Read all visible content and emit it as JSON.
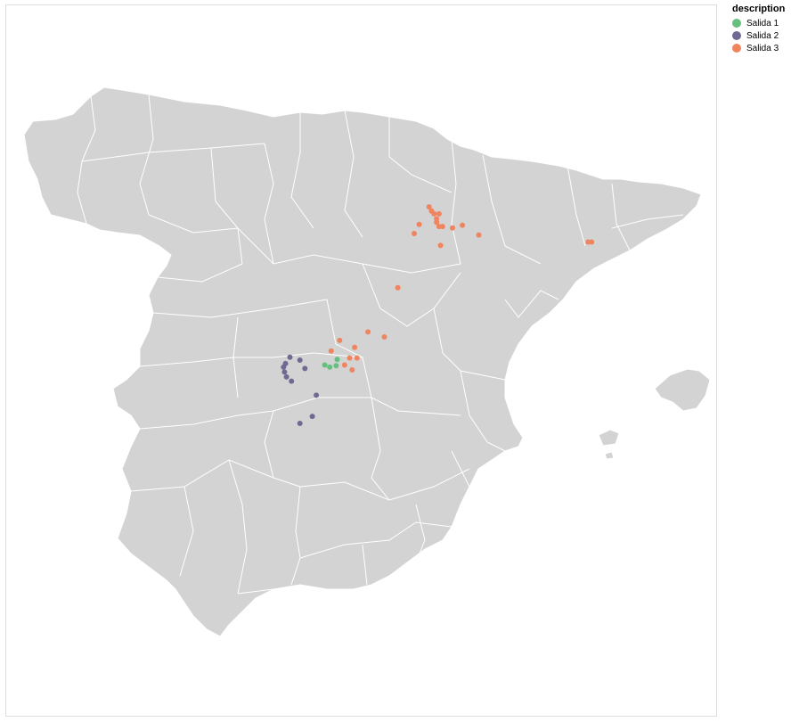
{
  "legend": {
    "title": "description",
    "items": [
      {
        "label": "Salida 1",
        "color": "#66bf7f"
      },
      {
        "label": "Salida 2",
        "color": "#6f6a92"
      },
      {
        "label": "Salida 3",
        "color": "#f0845e"
      }
    ]
  },
  "map": {
    "land_color": "#d3d3d3",
    "border_color": "#ffffff",
    "projection": {
      "lon_min": -9.4,
      "lon_max": 4.4,
      "lat_min": 35.9,
      "lat_max": 43.8
    }
  },
  "chart_data": {
    "type": "scatter",
    "title": "",
    "xlabel": "",
    "ylabel": "",
    "series": [
      {
        "name": "Salida 1",
        "points": [
          {
            "lon": -3.35,
            "lat": 39.85
          },
          {
            "lon": -3.25,
            "lat": 39.82
          },
          {
            "lon": -3.12,
            "lat": 39.84
          },
          {
            "lon": -3.1,
            "lat": 39.93
          }
        ]
      },
      {
        "name": "Salida 2",
        "points": [
          {
            "lon": -4.05,
            "lat": 39.96
          },
          {
            "lon": -4.14,
            "lat": 39.87
          },
          {
            "lon": -4.18,
            "lat": 39.82
          },
          {
            "lon": -4.16,
            "lat": 39.75
          },
          {
            "lon": -4.12,
            "lat": 39.68
          },
          {
            "lon": -4.02,
            "lat": 39.62
          },
          {
            "lon": -3.85,
            "lat": 39.92
          },
          {
            "lon": -3.75,
            "lat": 39.8
          },
          {
            "lon": -3.52,
            "lat": 39.42
          },
          {
            "lon": -3.6,
            "lat": 39.12
          },
          {
            "lon": -3.85,
            "lat": 39.02
          }
        ]
      },
      {
        "name": "Salida 3",
        "points": [
          {
            "lon": -1.25,
            "lat": 42.1
          },
          {
            "lon": -1.2,
            "lat": 42.04
          },
          {
            "lon": -1.15,
            "lat": 42.0
          },
          {
            "lon": -1.05,
            "lat": 42.0
          },
          {
            "lon": -1.1,
            "lat": 41.93
          },
          {
            "lon": -1.1,
            "lat": 41.88
          },
          {
            "lon": -1.05,
            "lat": 41.82
          },
          {
            "lon": -0.98,
            "lat": 41.82
          },
          {
            "lon": -1.45,
            "lat": 41.85
          },
          {
            "lon": -1.55,
            "lat": 41.72
          },
          {
            "lon": -0.78,
            "lat": 41.8
          },
          {
            "lon": -0.58,
            "lat": 41.84
          },
          {
            "lon": -0.25,
            "lat": 41.7
          },
          {
            "lon": -1.02,
            "lat": 41.55
          },
          {
            "lon": 1.95,
            "lat": 41.6
          },
          {
            "lon": 2.02,
            "lat": 41.6
          },
          {
            "lon": -1.88,
            "lat": 40.95
          },
          {
            "lon": -2.48,
            "lat": 40.32
          },
          {
            "lon": -2.15,
            "lat": 40.25
          },
          {
            "lon": -3.05,
            "lat": 40.2
          },
          {
            "lon": -2.75,
            "lat": 40.1
          },
          {
            "lon": -3.22,
            "lat": 40.05
          },
          {
            "lon": -2.85,
            "lat": 39.95
          },
          {
            "lon": -2.7,
            "lat": 39.95
          },
          {
            "lon": -2.95,
            "lat": 39.85
          },
          {
            "lon": -2.8,
            "lat": 39.78
          }
        ]
      }
    ],
    "legend_position": "top-right",
    "grid": false
  }
}
